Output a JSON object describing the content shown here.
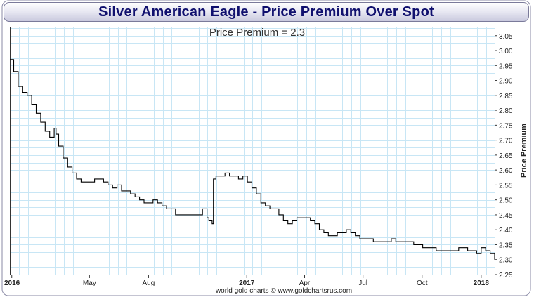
{
  "header": {
    "title": "Silver American Eagle - Price Premium Over Spot"
  },
  "chart_data": {
    "type": "line",
    "title": "Silver American Eagle - Price Premium Over Spot",
    "annotation": "Price Premium = 2.3",
    "ylabel": "Price Premium",
    "credit": "world gold charts © www.goldchartsrus.com",
    "ylim": [
      2.25,
      3.08
    ],
    "y_ticks": [
      "3.05",
      "3.00",
      "2.95",
      "2.90",
      "2.85",
      "2.80",
      "2.75",
      "2.70",
      "2.65",
      "2.60",
      "2.55",
      "2.50",
      "2.45",
      "2.40",
      "2.35",
      "2.30",
      "2.25"
    ],
    "x_ticks": [
      {
        "label": "2016",
        "date": "2016-01-01",
        "bold": true
      },
      {
        "label": "May",
        "date": "2016-05-01",
        "bold": false
      },
      {
        "label": "Aug",
        "date": "2016-08-01",
        "bold": false
      },
      {
        "label": "2017",
        "date": "2017-01-01",
        "bold": true
      },
      {
        "label": "Apr",
        "date": "2017-04-01",
        "bold": false
      },
      {
        "label": "Jul",
        "date": "2017-07-01",
        "bold": false
      },
      {
        "label": "Oct",
        "date": "2017-10-01",
        "bold": false
      },
      {
        "label": "2018",
        "date": "2018-01-01",
        "bold": true
      }
    ],
    "x_range": [
      "2015-12-29",
      "2018-01-22"
    ],
    "grid": true,
    "colors": {
      "line": "#000000",
      "grid": "#c8e6f5",
      "title": "#10106e"
    },
    "series": [
      {
        "x": [
          "2015-12-29",
          "2016-01-04",
          "2016-01-11",
          "2016-01-18",
          "2016-01-25",
          "2016-02-01",
          "2016-02-08",
          "2016-02-15",
          "2016-02-22",
          "2016-02-29",
          "2016-03-07",
          "2016-03-10",
          "2016-03-14",
          "2016-03-21",
          "2016-03-28",
          "2016-04-04",
          "2016-04-11",
          "2016-04-18",
          "2016-04-25",
          "2016-05-02",
          "2016-05-09",
          "2016-05-16",
          "2016-05-23",
          "2016-05-30",
          "2016-06-06",
          "2016-06-13",
          "2016-06-20",
          "2016-06-27",
          "2016-07-04",
          "2016-07-11",
          "2016-07-18",
          "2016-07-25",
          "2016-08-01",
          "2016-08-08",
          "2016-08-15",
          "2016-08-22",
          "2016-08-29",
          "2016-09-05",
          "2016-09-12",
          "2016-09-19",
          "2016-09-26",
          "2016-10-03",
          "2016-10-10",
          "2016-10-17",
          "2016-10-24",
          "2016-10-31",
          "2016-11-03",
          "2016-11-08",
          "2016-11-10",
          "2016-11-14",
          "2016-11-21",
          "2016-11-28",
          "2016-12-05",
          "2016-12-12",
          "2016-12-19",
          "2016-12-26",
          "2017-01-02",
          "2017-01-09",
          "2017-01-16",
          "2017-01-23",
          "2017-01-30",
          "2017-02-06",
          "2017-02-13",
          "2017-02-20",
          "2017-02-27",
          "2017-03-06",
          "2017-03-13",
          "2017-03-20",
          "2017-03-27",
          "2017-04-03",
          "2017-04-10",
          "2017-04-17",
          "2017-04-24",
          "2017-05-01",
          "2017-05-08",
          "2017-05-15",
          "2017-05-22",
          "2017-05-29",
          "2017-06-05",
          "2017-06-12",
          "2017-06-19",
          "2017-06-26",
          "2017-07-03",
          "2017-07-10",
          "2017-07-17",
          "2017-07-24",
          "2017-07-31",
          "2017-08-07",
          "2017-08-14",
          "2017-08-21",
          "2017-08-28",
          "2017-09-04",
          "2017-09-11",
          "2017-09-18",
          "2017-09-25",
          "2017-10-02",
          "2017-10-09",
          "2017-10-16",
          "2017-10-23",
          "2017-10-30",
          "2017-11-06",
          "2017-11-13",
          "2017-11-20",
          "2017-11-27",
          "2017-12-04",
          "2017-12-11",
          "2017-12-18",
          "2017-12-25",
          "2018-01-01",
          "2018-01-08",
          "2018-01-15",
          "2018-01-22"
        ],
        "y": [
          2.97,
          2.93,
          2.88,
          2.86,
          2.85,
          2.82,
          2.79,
          2.76,
          2.73,
          2.71,
          2.74,
          2.72,
          2.68,
          2.64,
          2.61,
          2.59,
          2.57,
          2.56,
          2.56,
          2.56,
          2.57,
          2.57,
          2.56,
          2.55,
          2.54,
          2.55,
          2.53,
          2.53,
          2.52,
          2.51,
          2.5,
          2.49,
          2.49,
          2.5,
          2.49,
          2.48,
          2.47,
          2.47,
          2.45,
          2.45,
          2.45,
          2.45,
          2.45,
          2.45,
          2.47,
          2.44,
          2.43,
          2.42,
          2.57,
          2.58,
          2.58,
          2.59,
          2.58,
          2.58,
          2.57,
          2.58,
          2.56,
          2.54,
          2.52,
          2.49,
          2.48,
          2.47,
          2.47,
          2.45,
          2.43,
          2.42,
          2.43,
          2.44,
          2.44,
          2.44,
          2.43,
          2.42,
          2.4,
          2.39,
          2.38,
          2.38,
          2.39,
          2.39,
          2.4,
          2.39,
          2.38,
          2.37,
          2.37,
          2.37,
          2.36,
          2.36,
          2.36,
          2.36,
          2.37,
          2.36,
          2.36,
          2.36,
          2.36,
          2.35,
          2.35,
          2.34,
          2.34,
          2.34,
          2.33,
          2.33,
          2.33,
          2.33,
          2.33,
          2.34,
          2.34,
          2.33,
          2.33,
          2.32,
          2.34,
          2.33,
          2.32,
          2.3
        ]
      }
    ]
  }
}
